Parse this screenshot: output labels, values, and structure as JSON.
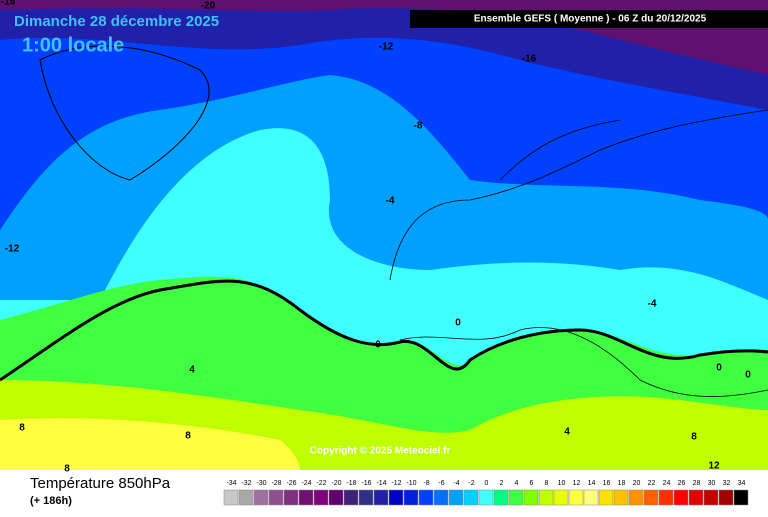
{
  "header": {
    "date": "Dimanche 28 décembre 2025",
    "time": "1:00 locale",
    "model": "Ensemble GEFS  ( Moyenne )  -  06 Z du 20/12/2025"
  },
  "copyright": "Copyright © 2025 Meteociel.fr",
  "footer": {
    "title": "Température 850hPa",
    "lead": "(+ 186h)"
  },
  "contour_labels": [
    "-16",
    "-20",
    "-12",
    "-16",
    "-8",
    "-4",
    "-12",
    "0",
    "0",
    "-4",
    "0",
    "0",
    "4",
    "4",
    "8",
    "8",
    "8",
    "12",
    "8"
  ],
  "legend": [
    {
      "label": "-34",
      "color": "#c8c8c8"
    },
    {
      "label": "-32",
      "color": "#a8a8a8"
    },
    {
      "label": "-30",
      "color": "#a070a0"
    },
    {
      "label": "-28",
      "color": "#905090"
    },
    {
      "label": "-26",
      "color": "#803080"
    },
    {
      "label": "-24",
      "color": "#701070"
    },
    {
      "label": "-22",
      "color": "#800080"
    },
    {
      "label": "-20",
      "color": "#600070"
    },
    {
      "label": "-18",
      "color": "#402078"
    },
    {
      "label": "-16",
      "color": "#303088"
    },
    {
      "label": "-14",
      "color": "#2020a8"
    },
    {
      "label": "-12",
      "color": "#0000c8"
    },
    {
      "label": "-10",
      "color": "#0020e0"
    },
    {
      "label": "-8",
      "color": "#0040ff"
    },
    {
      "label": "-6",
      "color": "#0070ff"
    },
    {
      "label": "-4",
      "color": "#00a0ff"
    },
    {
      "label": "-2",
      "color": "#00d0ff"
    },
    {
      "label": "0",
      "color": "#40ffff"
    },
    {
      "label": "2",
      "color": "#00ff80"
    },
    {
      "label": "4",
      "color": "#40ff40"
    },
    {
      "label": "6",
      "color": "#80ff00"
    },
    {
      "label": "8",
      "color": "#c0ff00"
    },
    {
      "label": "10",
      "color": "#e8ff00"
    },
    {
      "label": "12",
      "color": "#ffff40"
    },
    {
      "label": "14",
      "color": "#ffff80"
    },
    {
      "label": "16",
      "color": "#ffe000"
    },
    {
      "label": "18",
      "color": "#ffc000"
    },
    {
      "label": "20",
      "color": "#ff9000"
    },
    {
      "label": "22",
      "color": "#ff6000"
    },
    {
      "label": "24",
      "color": "#ff3000"
    },
    {
      "label": "26",
      "color": "#ff0000"
    },
    {
      "label": "28",
      "color": "#e00000"
    },
    {
      "label": "30",
      "color": "#c00000"
    },
    {
      "label": "32",
      "color": "#a00000"
    },
    {
      "label": "34",
      "color": "#000000"
    }
  ]
}
